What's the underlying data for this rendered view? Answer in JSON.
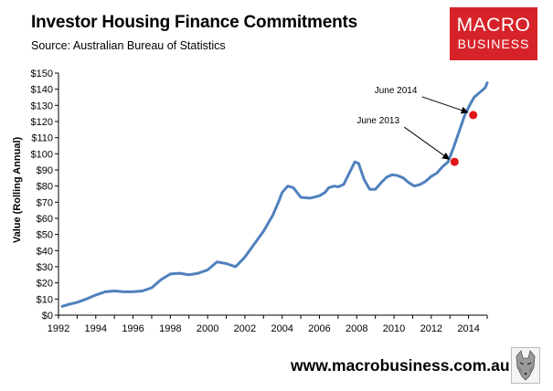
{
  "header": {
    "title": "Investor Housing Finance Commitments",
    "subtitle": "Source: Australian Bureau of Statistics"
  },
  "logo": {
    "line1": "MACRO",
    "line2": "BUSINESS",
    "color": "#d6232a"
  },
  "footer": {
    "website": "www.macrobusiness.com.au",
    "mascot_icon": "wolf-icon"
  },
  "chart_data": {
    "type": "line",
    "title": "Investor Housing Finance Commitments",
    "subtitle": "Source: Australian Bureau of Statistics",
    "xlabel": "",
    "ylabel": "Value (Rolling Annual)",
    "xlim": [
      1992,
      2015
    ],
    "ylim": [
      0,
      150
    ],
    "x_ticks": [
      "1992",
      "1994",
      "1996",
      "1998",
      "2000",
      "2002",
      "2004",
      "2006",
      "2008",
      "2010",
      "2012",
      "2014"
    ],
    "y_ticks": [
      "$0",
      "$10",
      "$20",
      "$30",
      "$40",
      "$50",
      "$60",
      "$70",
      "$80",
      "$90",
      "$100",
      "$110",
      "$120",
      "$130",
      "$140",
      "$150"
    ],
    "grid": false,
    "line_color": "#4f81bd",
    "marker_color": "#e3141b",
    "series": [
      {
        "x": [
          1992.2,
          1992.5,
          1993.0,
          1993.5,
          1994.0,
          1994.5,
          1995.0,
          1995.5,
          1996.0,
          1996.5,
          1997.0,
          1997.5,
          1998.0,
          1998.5,
          1999.0,
          1999.5,
          2000.0,
          2000.5,
          2001.0,
          2001.5,
          2002.0,
          2002.5,
          2003.0,
          2003.5,
          2003.8,
          2004.0,
          2004.3,
          2004.6,
          2005.0,
          2005.5,
          2006.0,
          2006.3,
          2006.5,
          2006.8,
          2007.0,
          2007.3,
          2007.6,
          2007.9,
          2008.1,
          2008.4,
          2008.7,
          2009.0,
          2009.3,
          2009.6,
          2009.9,
          2010.2,
          2010.5,
          2010.8,
          2011.1,
          2011.4,
          2011.7,
          2012.0,
          2012.3,
          2012.6,
          2012.9,
          2013.2,
          2013.5,
          2013.8,
          2014.1,
          2014.3,
          2014.6,
          2014.9,
          2015.0
        ],
        "y": [
          5.5,
          6.5,
          8,
          10,
          12.5,
          14.5,
          15,
          14.5,
          14.5,
          15,
          17,
          22,
          25.5,
          26,
          25,
          26,
          28,
          33,
          32,
          30,
          36,
          44,
          52,
          62,
          70,
          76,
          80,
          79,
          73,
          72.5,
          74,
          76,
          79,
          80,
          79.5,
          81,
          88,
          95,
          94,
          84,
          78,
          78,
          82,
          85.5,
          87,
          86.5,
          85,
          82,
          80,
          81,
          83,
          86,
          88,
          92,
          95,
          104,
          114,
          124,
          131,
          135,
          138,
          141,
          144
        ]
      }
    ],
    "annotations": [
      {
        "label": "June 2013",
        "x": 2013.25,
        "y": 95
      },
      {
        "label": "June 2014",
        "x": 2014.25,
        "y": 124
      }
    ]
  }
}
